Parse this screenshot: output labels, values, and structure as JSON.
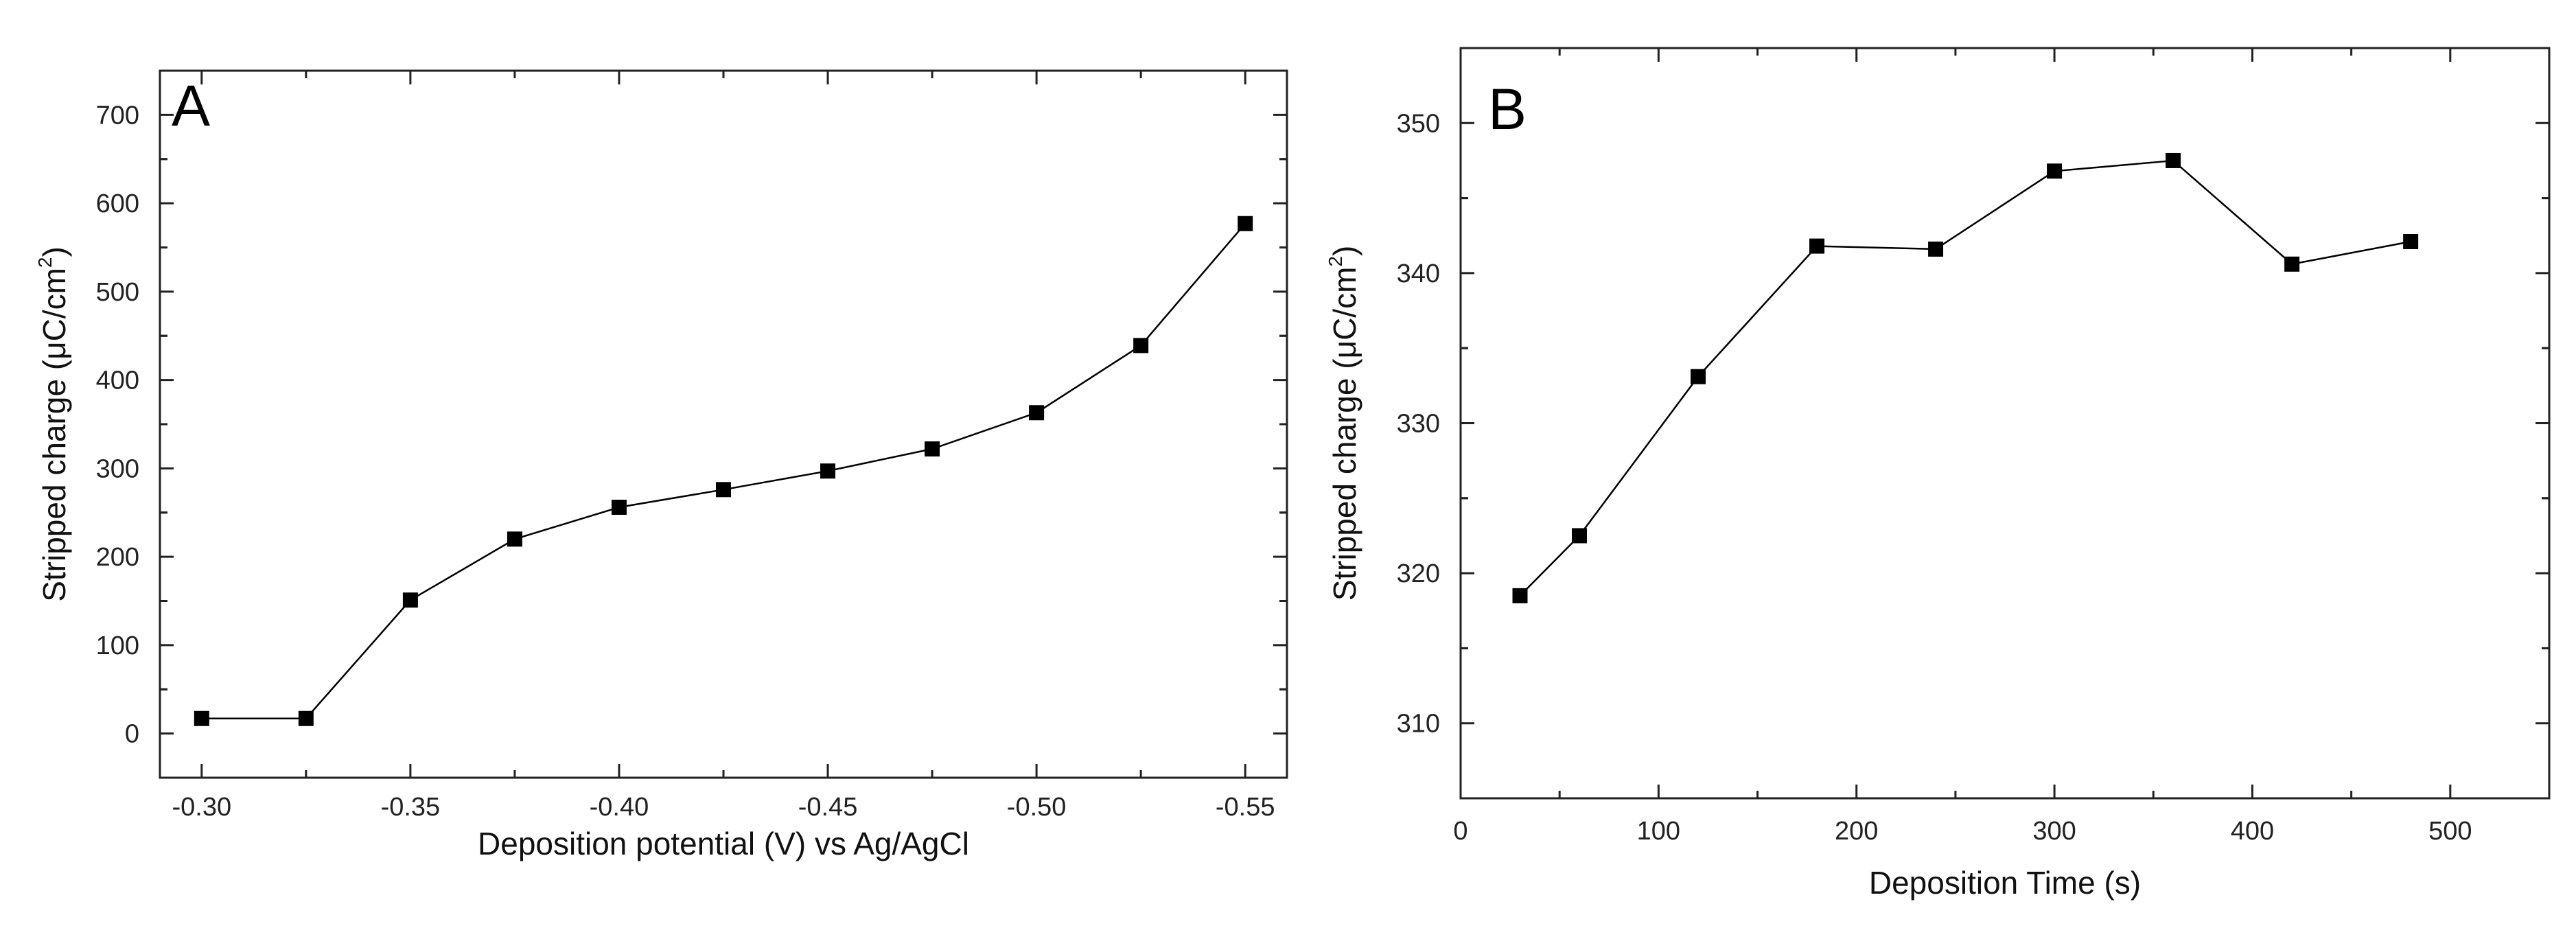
{
  "chart_data": [
    {
      "type": "line",
      "panel_label": "A",
      "title": "",
      "xlabel": "Deposition potential (V) vs Ag/AgCl",
      "ylabel_main": "Stripped charge (μC/cm",
      "ylabel_sup": "2",
      "ylabel_close": ")",
      "xlim": [
        -0.29,
        -0.56
      ],
      "ylim": [
        -50,
        750
      ],
      "xticks": [
        -0.3,
        -0.35,
        -0.4,
        -0.45,
        -0.5,
        -0.55
      ],
      "xtick_labels": [
        "-0.30",
        "-0.35",
        "-0.40",
        "-0.45",
        "-0.50",
        "-0.55"
      ],
      "yticks": [
        0,
        100,
        200,
        300,
        400,
        500,
        600,
        700
      ],
      "ytick_labels": [
        "0",
        "100",
        "200",
        "300",
        "400",
        "500",
        "600",
        "700"
      ],
      "x": [
        -0.3,
        -0.325,
        -0.35,
        -0.375,
        -0.4,
        -0.425,
        -0.45,
        -0.475,
        -0.5,
        -0.525,
        -0.55
      ],
      "y": [
        17,
        17,
        151,
        220,
        256,
        276,
        297,
        322,
        363,
        439,
        577
      ],
      "marker": "square",
      "color": "#000000"
    },
    {
      "type": "line",
      "panel_label": "B",
      "title": "",
      "xlabel": "Deposition Time (s)",
      "ylabel_main": "Stripped charge (μC/cm",
      "ylabel_sup": "2",
      "ylabel_close": ")",
      "xlim": [
        0,
        550
      ],
      "ylim": [
        305,
        355
      ],
      "xticks": [
        0,
        100,
        200,
        300,
        400,
        500
      ],
      "xtick_labels": [
        "0",
        "100",
        "200",
        "300",
        "400",
        "500"
      ],
      "yticks": [
        310,
        320,
        330,
        340,
        350
      ],
      "ytick_labels": [
        "310",
        "320",
        "330",
        "340",
        "350"
      ],
      "x": [
        30,
        60,
        120,
        180,
        240,
        300,
        360,
        420,
        480
      ],
      "y": [
        318.5,
        322.5,
        333.1,
        341.8,
        341.6,
        346.8,
        347.5,
        340.6,
        342.1
      ],
      "marker": "square",
      "color": "#000000"
    }
  ]
}
